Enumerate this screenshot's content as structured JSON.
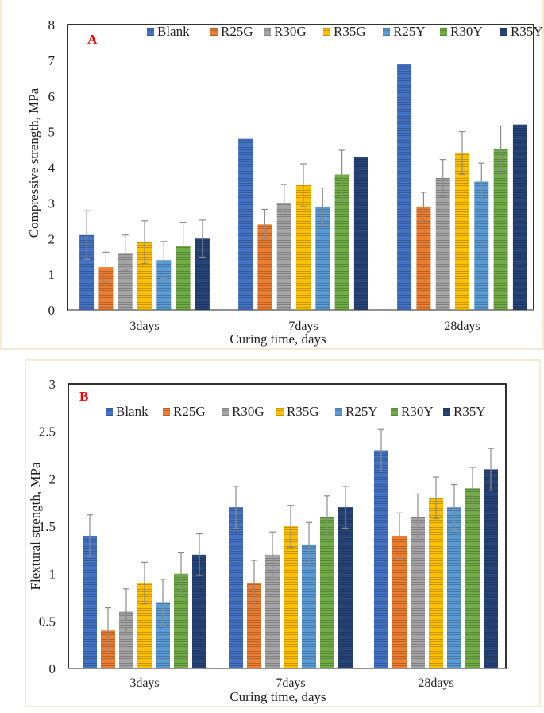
{
  "chart_data": [
    {
      "type": "bar",
      "panel_label": "A",
      "title": "",
      "xlabel": "Curing time, days",
      "ylabel": "Compressive strength, MPa",
      "ylim": [
        0,
        8
      ],
      "yticks": [
        "0",
        "1",
        "2",
        "3",
        "4",
        "5",
        "6",
        "7",
        "8"
      ],
      "categories": [
        "3days",
        "7days",
        "28days"
      ],
      "legend_position": "top-right",
      "series": [
        {
          "name": "Blank",
          "color": "#4472c4",
          "values": [
            2.1,
            4.8,
            6.9
          ],
          "errors": [
            0.68,
            0,
            0
          ]
        },
        {
          "name": "R25G",
          "color": "#ed7d31",
          "values": [
            1.2,
            2.4,
            2.9
          ],
          "errors": [
            0.42,
            0.42,
            0.4
          ]
        },
        {
          "name": "R30G",
          "color": "#a5a5a5",
          "values": [
            1.6,
            3.0,
            3.7
          ],
          "errors": [
            0.5,
            0.52,
            0.52
          ]
        },
        {
          "name": "R35G",
          "color": "#ffc000",
          "values": [
            1.9,
            3.5,
            4.4
          ],
          "errors": [
            0.6,
            0.6,
            0.6
          ]
        },
        {
          "name": "R25Y",
          "color": "#5b9bd5",
          "values": [
            1.4,
            2.9,
            3.6
          ],
          "errors": [
            0.52,
            0.52,
            0.52
          ]
        },
        {
          "name": "R30Y",
          "color": "#70ad47",
          "values": [
            1.8,
            3.8,
            4.5
          ],
          "errors": [
            0.66,
            0.68,
            0.66
          ]
        },
        {
          "name": "R35Y",
          "color": "#264478",
          "values": [
            2.0,
            4.3,
            5.2
          ],
          "errors": [
            0.52,
            0,
            0
          ]
        }
      ]
    },
    {
      "type": "bar",
      "panel_label": "B",
      "title": "",
      "xlabel": "Curing time, days",
      "ylabel": "Flextural strength, MPa",
      "ylim": [
        0,
        3
      ],
      "yticks": [
        "0",
        "0.5",
        "1",
        "1.5",
        "2",
        "2.5",
        "3"
      ],
      "categories": [
        "3days",
        "7days",
        "28days"
      ],
      "legend_position": "top-center",
      "series": [
        {
          "name": "Blank",
          "color": "#4472c4",
          "values": [
            1.4,
            1.7,
            2.3
          ],
          "errors": [
            0.22,
            0.22,
            0.22
          ]
        },
        {
          "name": "R25G",
          "color": "#ed7d31",
          "values": [
            0.4,
            0.9,
            1.4
          ],
          "errors": [
            0.24,
            0.24,
            0.24
          ]
        },
        {
          "name": "R30G",
          "color": "#a5a5a5",
          "values": [
            0.6,
            1.2,
            1.6
          ],
          "errors": [
            0.24,
            0.24,
            0.24
          ]
        },
        {
          "name": "R35G",
          "color": "#ffc000",
          "values": [
            0.9,
            1.5,
            1.8
          ],
          "errors": [
            0.22,
            0.22,
            0.22
          ]
        },
        {
          "name": "R25Y",
          "color": "#5b9bd5",
          "values": [
            0.7,
            1.3,
            1.7
          ],
          "errors": [
            0.24,
            0.24,
            0.24
          ]
        },
        {
          "name": "R30Y",
          "color": "#70ad47",
          "values": [
            1.0,
            1.6,
            1.9
          ],
          "errors": [
            0.22,
            0.22,
            0.22
          ]
        },
        {
          "name": "R35Y",
          "color": "#264478",
          "values": [
            1.2,
            1.7,
            2.1
          ],
          "errors": [
            0.22,
            0.22,
            0.22
          ]
        }
      ]
    }
  ]
}
